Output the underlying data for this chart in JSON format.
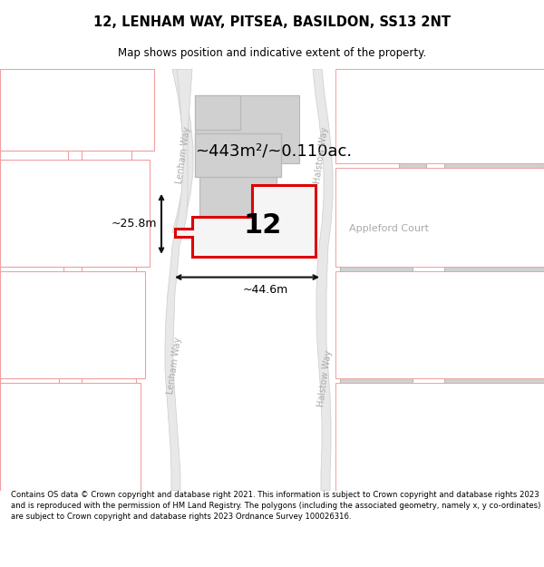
{
  "title": "12, LENHAM WAY, PITSEA, BASILDON, SS13 2NT",
  "subtitle": "Map shows position and indicative extent of the property.",
  "footer": "Contains OS data © Crown copyright and database right 2021. This information is subject to Crown copyright and database rights 2023 and is reproduced with the permission of HM Land Registry. The polygons (including the associated geometry, namely x, y co-ordinates) are subject to Crown copyright and database rights 2023 Ordnance Survey 100026316.",
  "area_label": "~443m²/~0.110ac.",
  "width_label": "~44.6m",
  "height_label": "~25.8m",
  "property_number": "12",
  "road_label_upper_left": "Lenham Way",
  "road_label_lower_left": "Lenham Way",
  "road_label_upper_right": "Halstow Way",
  "road_label_lower_right": "Halstow Way",
  "appleford_label": "Appleford Court",
  "bg_color": "#ffffff",
  "road_fill": "#e8e8e8",
  "road_edge": "#cccccc",
  "grey_bld_fill": "#d0d0d0",
  "grey_bld_edge": "#b8b8b8",
  "faded_fill": "#ffffff",
  "faded_edge": "#f0a0a0",
  "prop_fill": "#f5f5f5",
  "prop_edge": "#dd0000",
  "prop_edge_width": 2.2,
  "dim_color": "#111111",
  "road_text_color": "#aaaaaa",
  "title_fontsize": 10.5,
  "subtitle_fontsize": 8.5,
  "area_fontsize": 13,
  "prop_num_fontsize": 22,
  "road_label_fontsize": 7,
  "dim_fontsize": 9,
  "appleford_fontsize": 8,
  "footer_fontsize": 6.1
}
